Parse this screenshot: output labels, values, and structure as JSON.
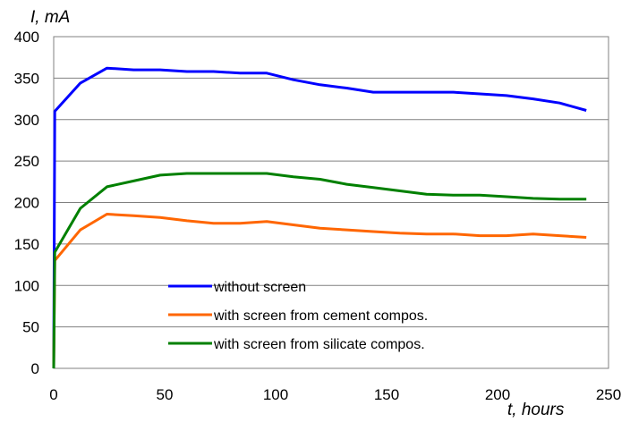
{
  "chart_data": {
    "type": "line",
    "xlabel": "t, hours",
    "ylabel": "I,  mA",
    "xlim": [
      0,
      250
    ],
    "ylim": [
      0,
      400
    ],
    "xticks": [
      0,
      50,
      100,
      150,
      200,
      250
    ],
    "yticks": [
      0,
      50,
      100,
      150,
      200,
      250,
      300,
      350,
      400
    ],
    "grid": "horizontal",
    "legend_position": "center-bottom",
    "series": [
      {
        "name": "without screen",
        "color": "#0000ff",
        "x": [
          0,
          0.5,
          12,
          24,
          36,
          48,
          60,
          72,
          84,
          96,
          108,
          120,
          132,
          144,
          156,
          168,
          180,
          192,
          204,
          216,
          228,
          240
        ],
        "y": [
          0,
          310,
          344,
          362,
          360,
          360,
          358,
          358,
          356,
          356,
          348,
          342,
          338,
          333,
          333,
          333,
          333,
          331,
          329,
          325,
          320,
          311
        ]
      },
      {
        "name": "with screen from cement compos.",
        "color": "#ff6600",
        "x": [
          0,
          0.5,
          12,
          24,
          36,
          48,
          60,
          72,
          84,
          96,
          108,
          120,
          132,
          144,
          156,
          168,
          180,
          192,
          204,
          216,
          228,
          240
        ],
        "y": [
          0,
          130,
          167,
          186,
          184,
          182,
          178,
          175,
          175,
          177,
          173,
          169,
          167,
          165,
          163,
          162,
          162,
          160,
          160,
          162,
          160,
          158
        ]
      },
      {
        "name": "with screen from silicate compos.",
        "color": "#008000",
        "x": [
          0,
          0.5,
          12,
          24,
          36,
          48,
          60,
          72,
          84,
          96,
          108,
          120,
          132,
          144,
          156,
          168,
          180,
          192,
          204,
          216,
          228,
          240
        ],
        "y": [
          0,
          140,
          193,
          219,
          226,
          233,
          235,
          235,
          235,
          235,
          231,
          228,
          222,
          218,
          214,
          210,
          209,
          209,
          207,
          205,
          204,
          204
        ]
      }
    ]
  }
}
